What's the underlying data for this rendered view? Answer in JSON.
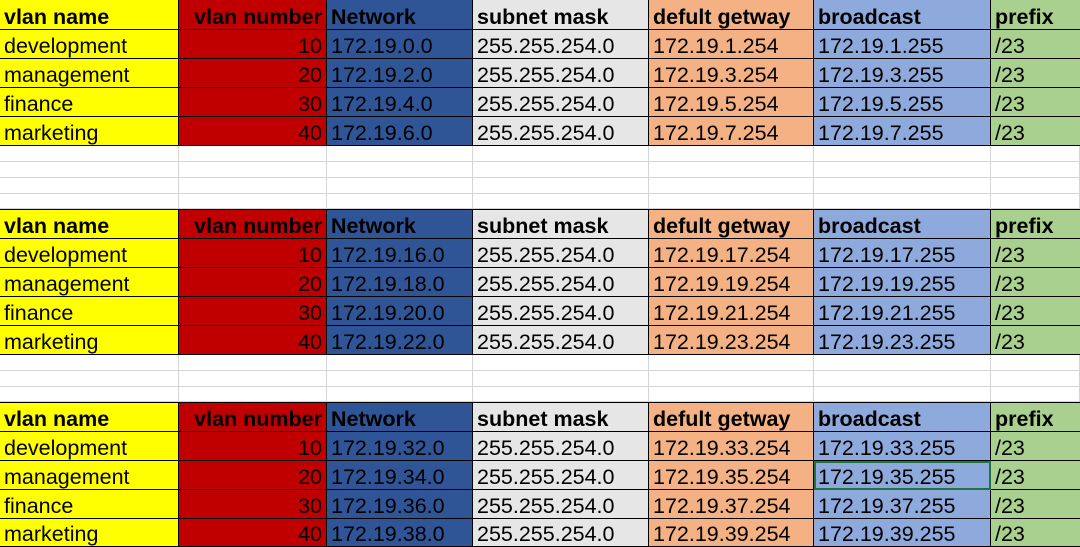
{
  "colors": {
    "vlan_name": "#FFFF00",
    "vlan_number": "#C00000",
    "network": "#2F5597",
    "subnet_mask": "#E7E6E6",
    "default_gateway": "#F4B183",
    "broadcast": "#8EA9DB",
    "prefix": "#A9D08E"
  },
  "headers": [
    "vlan name",
    "vlan number",
    "Network",
    "subnet mask",
    "defult getway",
    "broadcast",
    "prefix"
  ],
  "tables": [
    {
      "rows": [
        [
          "development",
          "10",
          "172.19.0.0",
          "255.255.254.0",
          "172.19.1.254",
          "172.19.1.255",
          "/23"
        ],
        [
          "management",
          "20",
          "172.19.2.0",
          "255.255.254.0",
          "172.19.3.254",
          "172.19.3.255",
          "/23"
        ],
        [
          "finance",
          "30",
          "172.19.4.0",
          "255.255.254.0",
          "172.19.5.254",
          "172.19.5.255",
          "/23"
        ],
        [
          "marketing",
          "40",
          "172.19.6.0",
          "255.255.254.0",
          "172.19.7.254",
          "172.19.7.255",
          "/23"
        ]
      ]
    },
    {
      "rows": [
        [
          "development",
          "10",
          "172.19.16.0",
          "255.255.254.0",
          "172.19.17.254",
          "172.19.17.255",
          "/23"
        ],
        [
          "management",
          "20",
          "172.19.18.0",
          "255.255.254.0",
          "172.19.19.254",
          "172.19.19.255",
          "/23"
        ],
        [
          "finance",
          "30",
          "172.19.20.0",
          "255.255.254.0",
          "172.19.21.254",
          "172.19.21.255",
          "/23"
        ],
        [
          "marketing",
          "40",
          "172.19.22.0",
          "255.255.254.0",
          "172.19.23.254",
          "172.19.23.255",
          "/23"
        ]
      ]
    },
    {
      "rows": [
        [
          "development",
          "10",
          "172.19.32.0",
          "255.255.254.0",
          "172.19.33.254",
          "172.19.33.255",
          "/23"
        ],
        [
          "management",
          "20",
          "172.19.34.0",
          "255.255.254.0",
          "172.19.35.254",
          "172.19.35.255",
          "/23"
        ],
        [
          "finance",
          "30",
          "172.19.36.0",
          "255.255.254.0",
          "172.19.37.254",
          "172.19.37.255",
          "/23"
        ],
        [
          "marketing",
          "40",
          "172.19.38.0",
          "255.255.254.0",
          "172.19.39.254",
          "172.19.39.255",
          "/23"
        ]
      ]
    }
  ]
}
